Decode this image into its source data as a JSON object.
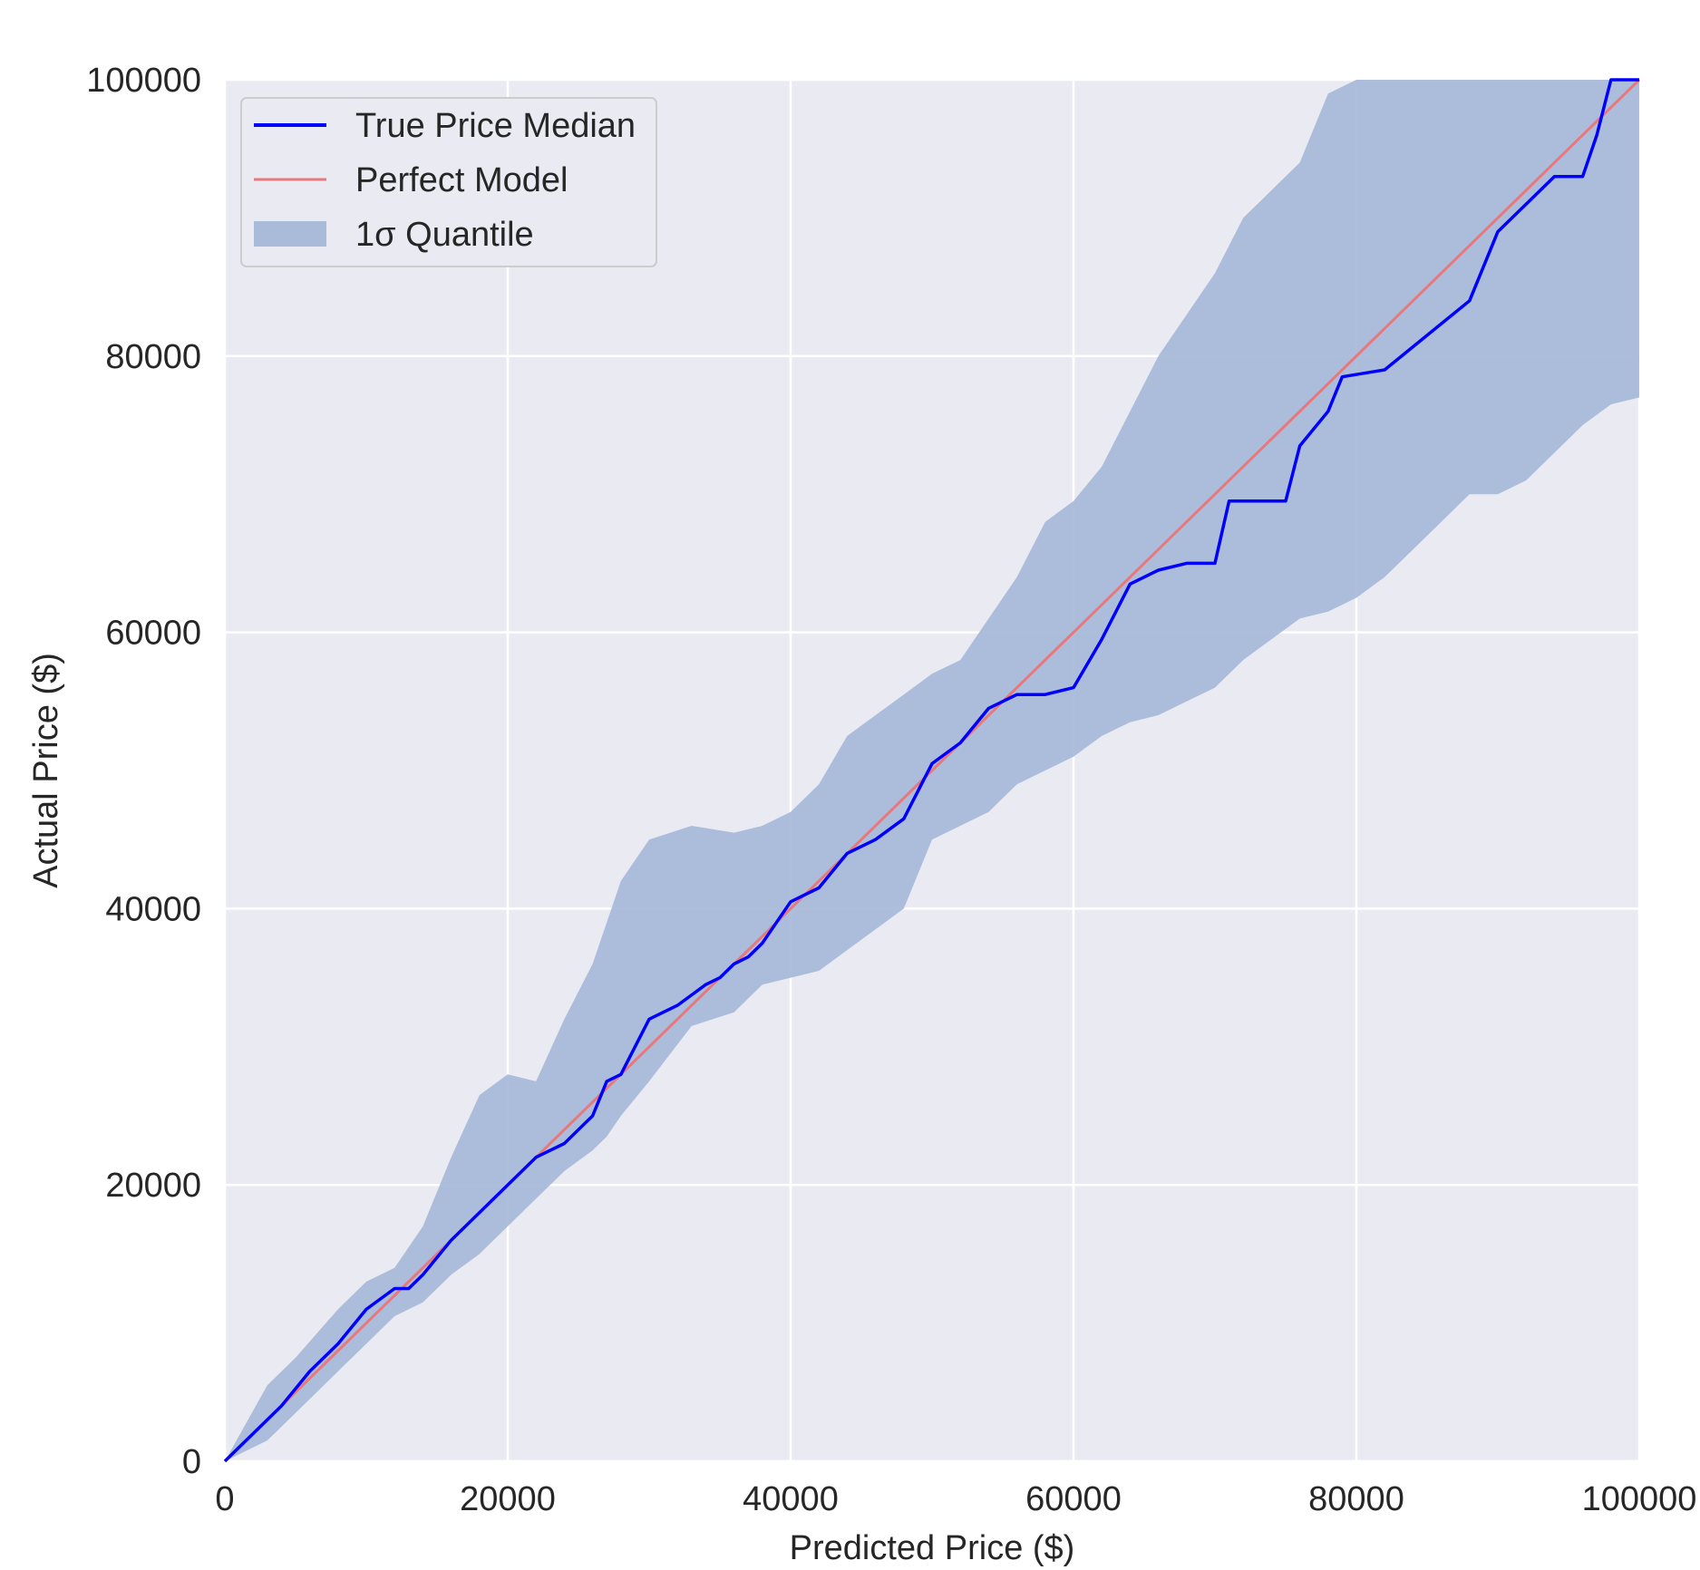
{
  "chart_data": {
    "type": "line",
    "title": "",
    "xlabel": "Predicted Price ($)",
    "ylabel": "Actual Price ($)",
    "xlim": [
      0,
      100000
    ],
    "ylim": [
      0,
      100000
    ],
    "xticks": [
      "0",
      "20000",
      "40000",
      "60000",
      "80000",
      "100000"
    ],
    "yticks": [
      "0",
      "20000",
      "40000",
      "60000",
      "80000",
      "100000"
    ],
    "grid": true,
    "legend_position": "top-left",
    "colors": {
      "axes_bg": "#eaeaf2",
      "grid": "#ffffff",
      "median": "#0000ff",
      "perfect": "#e8787c",
      "band": "#a9bbd9"
    },
    "series": [
      {
        "name": "True Price Median",
        "kind": "line",
        "x": [
          0,
          2000,
          4000,
          6000,
          8000,
          10000,
          12000,
          13000,
          14000,
          16000,
          18000,
          20000,
          22000,
          24000,
          26000,
          27000,
          28000,
          29000,
          30000,
          32000,
          34000,
          35000,
          36000,
          37000,
          38000,
          40000,
          42000,
          44000,
          46000,
          48000,
          50000,
          52000,
          54000,
          56000,
          58000,
          60000,
          62000,
          64000,
          66000,
          68000,
          70000,
          71000,
          75000,
          76000,
          78000,
          79000,
          82000,
          85000,
          88000,
          90000,
          92000,
          94000,
          96000,
          97000,
          98000,
          100000
        ],
        "y": [
          0,
          2000,
          4000,
          6500,
          8500,
          11000,
          12500,
          12500,
          13500,
          16000,
          18000,
          20000,
          22000,
          23000,
          25000,
          27500,
          28000,
          30000,
          32000,
          33000,
          34500,
          35000,
          36000,
          36500,
          37500,
          40500,
          41500,
          44000,
          45000,
          46500,
          50500,
          52000,
          54500,
          55500,
          55500,
          56000,
          59500,
          63500,
          64500,
          65000,
          65000,
          69500,
          69500,
          73500,
          76000,
          78500,
          79000,
          81500,
          84000,
          89000,
          91000,
          93000,
          93000,
          96000,
          100000,
          100000
        ]
      },
      {
        "name": "Perfect Model",
        "kind": "line",
        "x": [
          0,
          100000
        ],
        "y": [
          0,
          100000
        ]
      },
      {
        "name": "1σ Quantile",
        "kind": "band",
        "x": [
          0,
          3000,
          5000,
          8000,
          10000,
          12000,
          14000,
          16000,
          18000,
          20000,
          22000,
          24000,
          26000,
          27000,
          28000,
          30000,
          33000,
          36000,
          38000,
          40000,
          42000,
          44000,
          46000,
          48000,
          50000,
          52000,
          54000,
          56000,
          58000,
          60000,
          62000,
          64000,
          66000,
          68000,
          70000,
          72000,
          74000,
          76000,
          78000,
          80000,
          82000,
          84000,
          86000,
          88000,
          90000,
          92000,
          94000,
          96000,
          98000,
          100000
        ],
        "lower": [
          0,
          1500,
          3500,
          6500,
          8500,
          10500,
          11500,
          13500,
          15000,
          17000,
          19000,
          21000,
          22500,
          23500,
          25000,
          27500,
          31500,
          32500,
          34500,
          35000,
          35500,
          37000,
          38500,
          40000,
          45000,
          46000,
          47000,
          49000,
          50000,
          51000,
          52500,
          53500,
          54000,
          55000,
          56000,
          58000,
          59500,
          61000,
          61500,
          62500,
          64000,
          66000,
          68000,
          70000,
          70000,
          71000,
          73000,
          75000,
          76500,
          77000
        ],
        "upper": [
          0,
          5500,
          7500,
          11000,
          13000,
          14000,
          17000,
          22000,
          26500,
          28000,
          27500,
          32000,
          36000,
          39000,
          42000,
          45000,
          46000,
          45500,
          46000,
          47000,
          49000,
          52500,
          54000,
          55500,
          57000,
          58000,
          61000,
          64000,
          68000,
          69500,
          72000,
          76000,
          80000,
          83000,
          86000,
          90000,
          92000,
          94000,
          99000,
          100000,
          100000,
          100000,
          100000,
          100000,
          100000,
          100000,
          100000,
          100000,
          100000,
          100000
        ]
      }
    ]
  }
}
